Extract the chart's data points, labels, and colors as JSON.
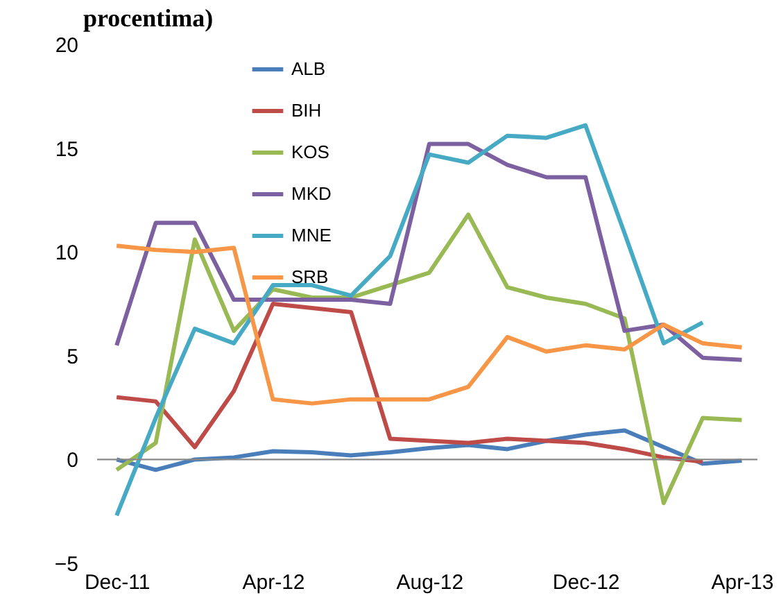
{
  "chart_data": {
    "type": "line",
    "title": "procentima)",
    "categories": [
      "Dec-11",
      null,
      null,
      null,
      "Apr-12",
      null,
      null,
      null,
      "Aug-12",
      null,
      null,
      null,
      "Dec-12",
      null,
      null,
      null,
      "Apr-13"
    ],
    "series": [
      {
        "name": "ALB",
        "color": "#4a7ebb",
        "values": [
          0,
          -0.5,
          0,
          0.1,
          0.4,
          0.35,
          0.2,
          0.35,
          0.55,
          0.7,
          0.5,
          0.9,
          1.2,
          1.4,
          0.6,
          -0.2,
          -0.05
        ]
      },
      {
        "name": "BIH",
        "color": "#be4b48",
        "values": [
          3.0,
          2.8,
          0.6,
          3.3,
          7.5,
          7.3,
          7.1,
          1.0,
          0.9,
          0.8,
          1.0,
          0.9,
          0.8,
          0.5,
          0.1,
          -0.1,
          null
        ]
      },
      {
        "name": "KOS",
        "color": "#98b954",
        "values": [
          -0.5,
          0.8,
          10.6,
          6.2,
          8.2,
          7.8,
          7.8,
          8.4,
          9.0,
          11.8,
          8.3,
          7.8,
          7.5,
          6.8,
          -2.1,
          2.0,
          1.9
        ]
      },
      {
        "name": "MKD",
        "color": "#7d60a0",
        "values": [
          5.5,
          11.4,
          11.4,
          7.7,
          7.7,
          7.7,
          7.7,
          7.5,
          15.2,
          15.2,
          14.2,
          13.6,
          13.6,
          6.2,
          6.5,
          4.9,
          4.8
        ]
      },
      {
        "name": "MNE",
        "color": "#46aac5",
        "values": [
          -2.7,
          2.0,
          6.3,
          5.6,
          8.4,
          8.4,
          7.9,
          9.8,
          14.7,
          14.3,
          15.6,
          15.5,
          16.1,
          10.9,
          5.6,
          6.6,
          null
        ]
      },
      {
        "name": "SRB",
        "color": "#f79646",
        "values": [
          10.3,
          10.1,
          10.0,
          10.2,
          2.9,
          2.7,
          2.9,
          2.9,
          2.9,
          3.5,
          5.9,
          5.2,
          5.5,
          5.3,
          6.5,
          5.6,
          5.4
        ]
      }
    ],
    "ylim": [
      -5,
      20
    ],
    "yticks": [
      -5,
      0,
      5,
      10,
      15,
      20
    ],
    "ref_lines": [
      {
        "axis": "y",
        "value": 0,
        "color": "#888888"
      }
    ],
    "grid": false,
    "legend": "top left",
    "marker": "none",
    "line_style": "solid"
  }
}
